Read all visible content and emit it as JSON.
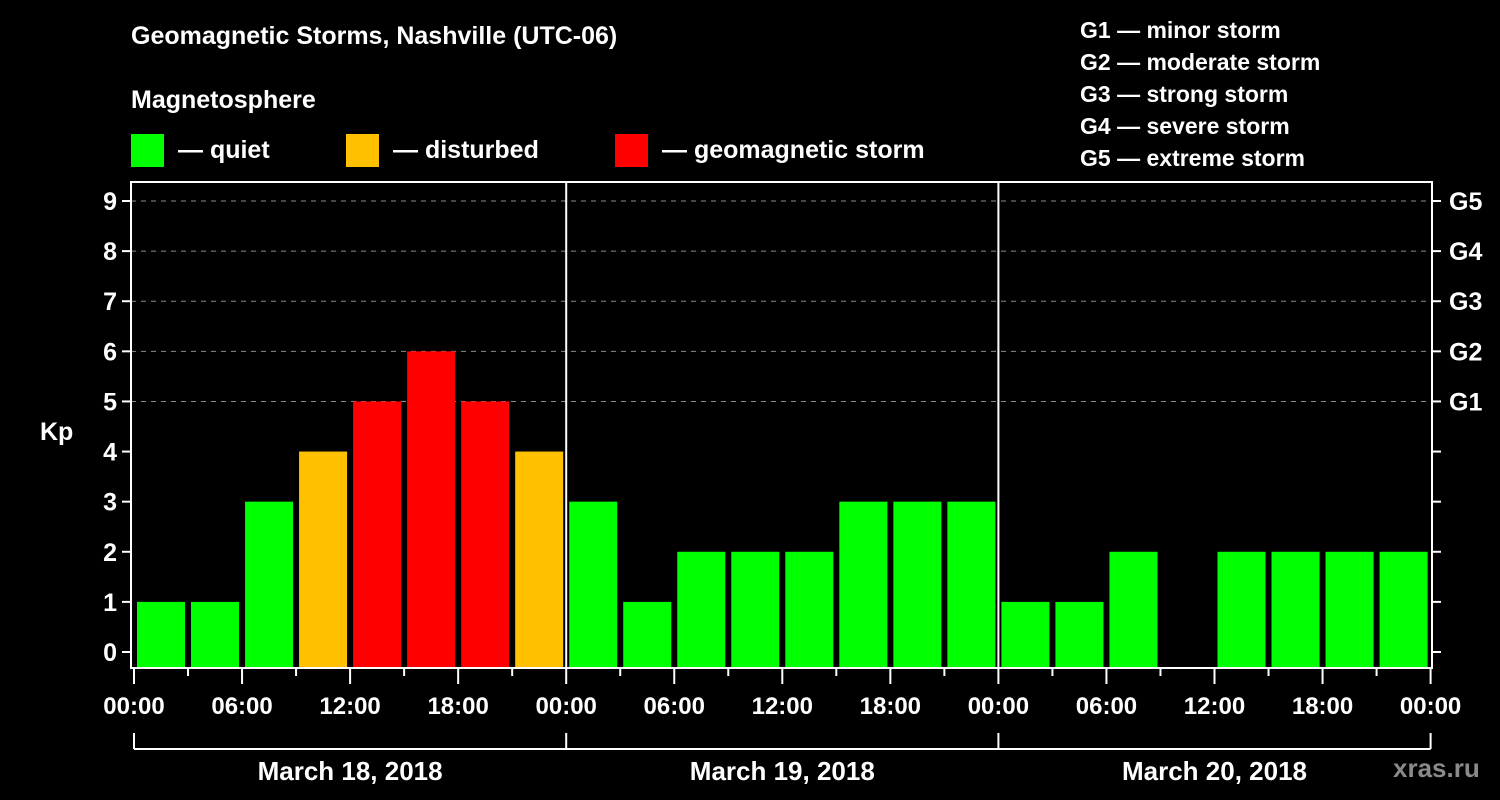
{
  "header": {
    "title": "Geomagnetic Storms, Nashville (UTC-06)",
    "subtitle": "Magnetosphere"
  },
  "legend": [
    {
      "label": "— quiet",
      "color": "#00ff00"
    },
    {
      "label": "— disturbed",
      "color": "#ffc000"
    },
    {
      "label": "— geomagnetic storm",
      "color": "#ff0000"
    }
  ],
  "g_scale": [
    "G1 — minor storm",
    "G2 — moderate storm",
    "G3 — strong storm",
    "G4 — severe storm",
    "G5 — extreme storm"
  ],
  "watermark": "xras.ru",
  "chart_data": {
    "type": "bar",
    "title": "Geomagnetic Storms, Nashville (UTC-06)",
    "ylabel": "Kp",
    "xlabel": "",
    "ylim": [
      0,
      9
    ],
    "yticks": [
      0,
      1,
      2,
      3,
      4,
      5,
      6,
      7,
      8,
      9
    ],
    "right_axis_labels": [
      {
        "kp": 5,
        "label": "G1"
      },
      {
        "kp": 6,
        "label": "G2"
      },
      {
        "kp": 7,
        "label": "G3"
      },
      {
        "kp": 8,
        "label": "G4"
      },
      {
        "kp": 9,
        "label": "G5"
      }
    ],
    "grid": "dashed horizontal lines at Kp 5–9",
    "xtick_labels": [
      "00:00",
      "06:00",
      "12:00",
      "18:00",
      "00:00",
      "06:00",
      "12:00",
      "18:00",
      "00:00",
      "06:00",
      "12:00",
      "18:00",
      "00:00"
    ],
    "days": [
      "March 18, 2018",
      "March 19, 2018",
      "March 20, 2018"
    ],
    "interval_hours": 3,
    "categories": [
      "Mar 18 00-03",
      "Mar 18 03-06",
      "Mar 18 06-09",
      "Mar 18 09-12",
      "Mar 18 12-15",
      "Mar 18 15-18",
      "Mar 18 18-21",
      "Mar 18 21-24",
      "Mar 19 00-03",
      "Mar 19 03-06",
      "Mar 19 06-09",
      "Mar 19 09-12",
      "Mar 19 12-15",
      "Mar 19 15-18",
      "Mar 19 18-21",
      "Mar 19 21-24",
      "Mar 20 00-03",
      "Mar 20 03-06",
      "Mar 20 06-09",
      "Mar 20 09-12",
      "Mar 20 12-15",
      "Mar 20 15-18",
      "Mar 20 18-21",
      "Mar 20 21-24"
    ],
    "values": [
      1,
      1,
      3,
      4,
      5,
      6,
      5,
      4,
      3,
      1,
      2,
      2,
      2,
      3,
      3,
      3,
      1,
      1,
      2,
      0,
      2,
      2,
      2,
      2
    ],
    "status": [
      "quiet",
      "quiet",
      "quiet",
      "disturbed",
      "storm",
      "storm",
      "storm",
      "disturbed",
      "quiet",
      "quiet",
      "quiet",
      "quiet",
      "quiet",
      "quiet",
      "quiet",
      "quiet",
      "quiet",
      "quiet",
      "quiet",
      "none",
      "quiet",
      "quiet",
      "quiet",
      "quiet"
    ],
    "colors": {
      "quiet": "#00ff00",
      "disturbed": "#ffc000",
      "storm": "#ff0000"
    }
  }
}
